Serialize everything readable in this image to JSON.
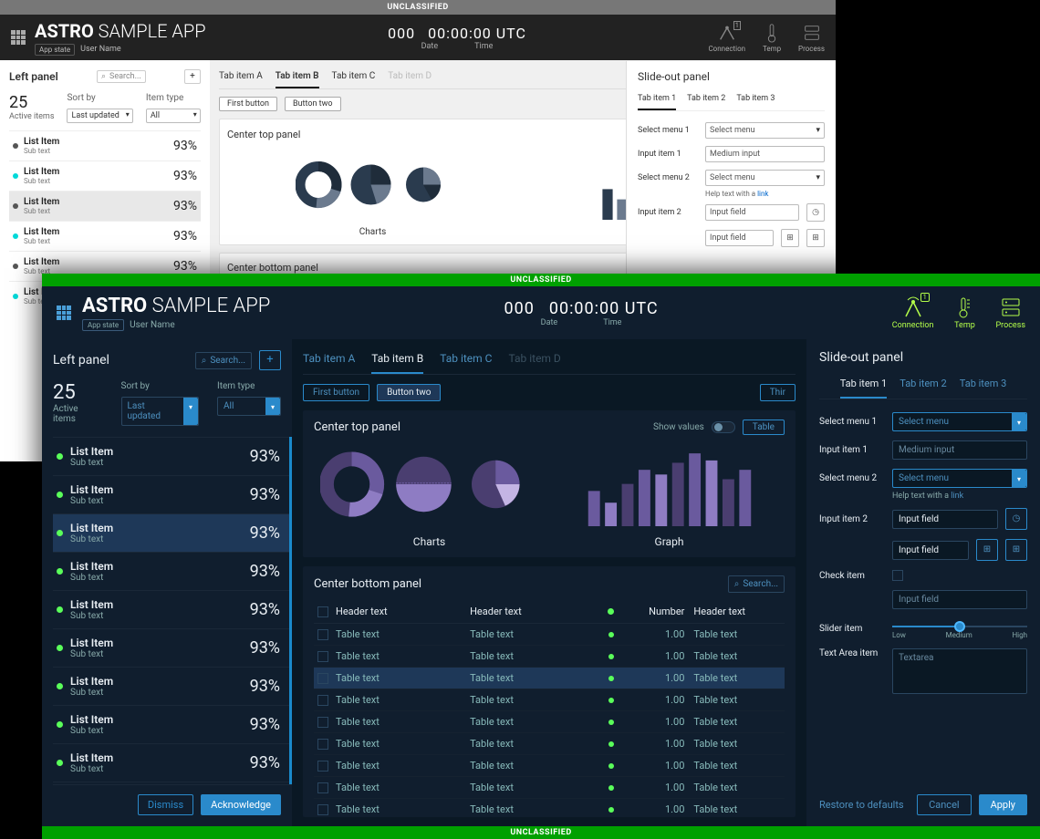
{
  "banner": "UNCLASSIFIED",
  "brand": {
    "bold": "ASTRO",
    "light": "SAMPLE APP",
    "state": "App state",
    "user": "User Name"
  },
  "clock": {
    "date": "000",
    "time": "00:00:00",
    "tz": "UTC",
    "date_lbl": "Date",
    "time_lbl": "Time"
  },
  "status": {
    "conn": "Connection",
    "temp": "Temp",
    "proc": "Process"
  },
  "left": {
    "title": "Left panel",
    "search": "Search...",
    "count": "25",
    "count_lbl": "Active items",
    "sort_lbl": "Sort by",
    "sort_val": "Last updated",
    "type_lbl": "Item type",
    "type_val": "All",
    "item_title": "List Item",
    "item_sub": "Sub text",
    "item_pct": "93%",
    "dismiss": "Dismiss",
    "ack": "Acknowledge"
  },
  "center": {
    "tabs": [
      "Tab item A",
      "Tab item B",
      "Tab item C",
      "Tab item D"
    ],
    "btn1": "First button",
    "btn2": "Button two",
    "btn3": "Third button",
    "top_title": "Center top panel",
    "show_values": "Show values",
    "table_btn": "Table",
    "charts_lbl": "Charts",
    "graph_lbl": "Graph",
    "bottom_title": "Center bottom panel",
    "search": "Search...",
    "th1": "Header text",
    "th2": "Header text",
    "th4": "Number",
    "th5": "Header text",
    "td1": "Table text",
    "td2": "Table text",
    "td4": "1.00",
    "td5": "Table text"
  },
  "slideout": {
    "title": "Slide-out panel",
    "tabs": [
      "Tab item 1",
      "Tab item 2",
      "Tab item 3"
    ],
    "sel1_lbl": "Select menu 1",
    "sel_val": "Select menu",
    "in1_lbl": "Input item 1",
    "in1_ph": "Medium input",
    "sel2_lbl": "Select menu 2",
    "help": "Help text with a ",
    "link": "link",
    "in2_lbl": "Input item 2",
    "in2_val": "Input field",
    "chk_lbl": "Check item",
    "slider_lbl": "Slider item",
    "slider_low": "Low",
    "slider_med": "Medium",
    "slider_hi": "High",
    "ta_lbl": "Text Area item",
    "ta_val": "Textarea",
    "restore": "Restore to defaults",
    "cancel": "Cancel",
    "apply": "Apply"
  },
  "colors": {
    "l_navy": "#2a3b4e",
    "l_navy2": "#1f2c3a",
    "l_grey": "#888",
    "d_purple1": "#6a5a9e",
    "d_purple2": "#8e7cc3",
    "d_purple3": "#4a3e70",
    "d_purple_lt": "#c4b5e4",
    "dot_green": "#5aff5a",
    "dot_cyan": "#00d8d8"
  },
  "bars_l": [
    30,
    20,
    36,
    48,
    44,
    54,
    62,
    56,
    40,
    48
  ],
  "bars_d": [
    30,
    20,
    36,
    48,
    44,
    54,
    62,
    56,
    40,
    48
  ]
}
